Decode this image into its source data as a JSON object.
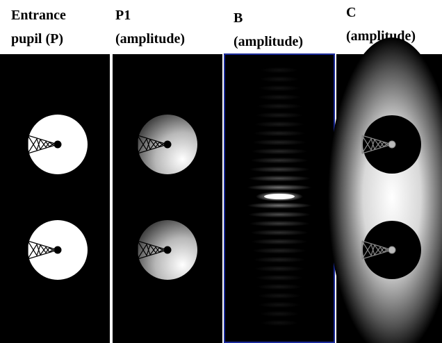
{
  "panels": [
    {
      "title": [
        "Entrance",
        "pupil (P)"
      ]
    },
    {
      "title": [
        "P1",
        "(amplitude)"
      ]
    },
    {
      "title": [
        "B",
        "(amplitude)"
      ]
    },
    {
      "title": [
        "C",
        "(amplitude)"
      ]
    }
  ]
}
